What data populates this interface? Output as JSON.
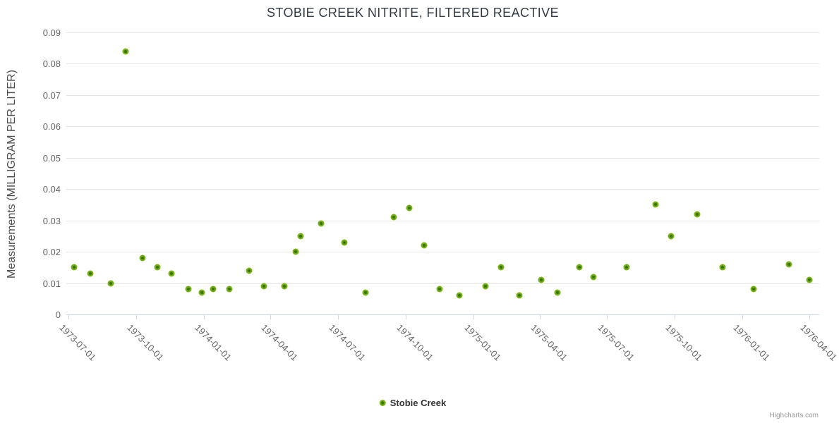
{
  "credit": "Highcharts.com",
  "legend": {
    "label": "Stobie Creek"
  },
  "colors": {
    "series_fill": "#76b113",
    "series_center": "#3d7309",
    "grid": "#e6e6e6",
    "axis_line": "#ccd6eb",
    "title_text": "#333c45",
    "axis_label_text": "#666666",
    "credit_text": "#999999"
  },
  "chart_data": {
    "type": "scatter",
    "title": "STOBIE CREEK NITRITE, FILTERED REACTIVE",
    "xlabel": "",
    "ylabel": "Measurements (MILLIGRAM PER LITER)",
    "ylim": [
      0,
      0.09
    ],
    "yticks": [
      "0.09",
      "0.08",
      "0.07",
      "0.06",
      "0.05",
      "0.04",
      "0.03",
      "0.02",
      "0.01",
      "0"
    ],
    "xlim": [
      "1973-06-28",
      "1976-04-14"
    ],
    "xticks": [
      "1973-07-01",
      "1973-10-01",
      "1974-01-01",
      "1974-04-01",
      "1974-07-01",
      "1974-10-01",
      "1975-01-01",
      "1975-04-01",
      "1975-07-01",
      "1975-10-01",
      "1976-01-01",
      "1976-04-01"
    ],
    "grid": true,
    "legend_position": "bottom-center",
    "series": [
      {
        "name": "Stobie Creek",
        "color": "#76b113",
        "points": [
          {
            "x": "1973-07-09",
            "y": 0.015
          },
          {
            "x": "1973-07-31",
            "y": 0.013
          },
          {
            "x": "1973-08-27",
            "y": 0.01
          },
          {
            "x": "1973-09-16",
            "y": 0.084
          },
          {
            "x": "1973-10-09",
            "y": 0.018
          },
          {
            "x": "1973-10-29",
            "y": 0.015
          },
          {
            "x": "1973-11-18",
            "y": 0.013
          },
          {
            "x": "1973-12-11",
            "y": 0.008
          },
          {
            "x": "1973-12-29",
            "y": 0.007
          },
          {
            "x": "1974-01-13",
            "y": 0.008
          },
          {
            "x": "1974-02-04",
            "y": 0.008
          },
          {
            "x": "1974-03-03",
            "y": 0.014
          },
          {
            "x": "1974-03-23",
            "y": 0.009
          },
          {
            "x": "1974-04-20",
            "y": 0.009
          },
          {
            "x": "1974-05-05",
            "y": 0.02
          },
          {
            "x": "1974-05-12",
            "y": 0.025
          },
          {
            "x": "1974-06-08",
            "y": 0.029
          },
          {
            "x": "1974-07-10",
            "y": 0.023
          },
          {
            "x": "1974-08-08",
            "y": 0.007
          },
          {
            "x": "1974-09-15",
            "y": 0.031
          },
          {
            "x": "1974-10-06",
            "y": 0.034
          },
          {
            "x": "1974-10-26",
            "y": 0.022
          },
          {
            "x": "1974-11-16",
            "y": 0.008
          },
          {
            "x": "1974-12-13",
            "y": 0.006
          },
          {
            "x": "1975-01-17",
            "y": 0.009
          },
          {
            "x": "1975-02-07",
            "y": 0.015
          },
          {
            "x": "1975-03-04",
            "y": 0.006
          },
          {
            "x": "1975-04-03",
            "y": 0.011
          },
          {
            "x": "1975-04-25",
            "y": 0.007
          },
          {
            "x": "1975-05-25",
            "y": 0.015
          },
          {
            "x": "1975-06-13",
            "y": 0.012
          },
          {
            "x": "1975-07-28",
            "y": 0.015
          },
          {
            "x": "1975-09-05",
            "y": 0.035
          },
          {
            "x": "1975-09-26",
            "y": 0.025
          },
          {
            "x": "1975-10-31",
            "y": 0.032
          },
          {
            "x": "1975-12-05",
            "y": 0.015
          },
          {
            "x": "1976-01-16",
            "y": 0.008
          },
          {
            "x": "1976-03-04",
            "y": 0.016
          },
          {
            "x": "1976-04-01",
            "y": 0.011
          }
        ]
      }
    ]
  }
}
